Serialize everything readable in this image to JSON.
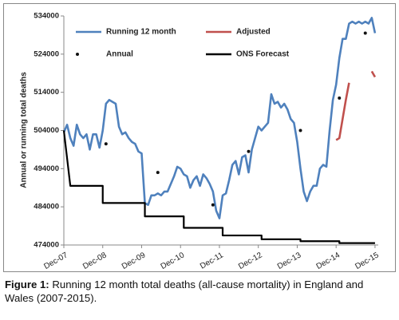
{
  "chart_data": {
    "type": "line",
    "y_label": "Annual or running total deaths",
    "xlim": [
      0,
      97
    ],
    "ylim": [
      474000,
      534000
    ],
    "yticks": [
      474000,
      484000,
      494000,
      504000,
      514000,
      524000,
      534000
    ],
    "xticks": [
      {
        "value": 0,
        "label": "Dec-07"
      },
      {
        "value": 12,
        "label": "Dec-08"
      },
      {
        "value": 24,
        "label": "Dec-09"
      },
      {
        "value": 36,
        "label": "Dec-10"
      },
      {
        "value": 48,
        "label": "Dec-11"
      },
      {
        "value": 60,
        "label": "Dec-12"
      },
      {
        "value": 72,
        "label": "Dec-13"
      },
      {
        "value": 84,
        "label": "Dec-14"
      },
      {
        "value": 96,
        "label": "Dec-15"
      }
    ],
    "series": [
      {
        "name": "Running 12 month",
        "color": "#4f81bd",
        "style": "line",
        "x": [
          0,
          1,
          2,
          3,
          4,
          5,
          6,
          7,
          8,
          9,
          10,
          11,
          12,
          13,
          14,
          15,
          16,
          17,
          18,
          19,
          20,
          21,
          22,
          23,
          24,
          25,
          26,
          27,
          28,
          29,
          30,
          31,
          32,
          33,
          34,
          35,
          36,
          37,
          38,
          39,
          40,
          41,
          42,
          43,
          44,
          45,
          46,
          47,
          48,
          49,
          50,
          51,
          52,
          53,
          54,
          55,
          56,
          57,
          58,
          59,
          60,
          61,
          62,
          63,
          64,
          65,
          66,
          67,
          68,
          69,
          70,
          71,
          72,
          73,
          74,
          75,
          76,
          77,
          78,
          79,
          80,
          81,
          82,
          83,
          84,
          85,
          86,
          87,
          88,
          89,
          90,
          91,
          92,
          93,
          94,
          95,
          96
        ],
        "values": [
          503500,
          505500,
          502000,
          500000,
          505500,
          503000,
          502000,
          503000,
          499000,
          503000,
          503000,
          499500,
          504000,
          511000,
          512000,
          511500,
          511000,
          505000,
          503000,
          503500,
          502000,
          501000,
          500500,
          498500,
          498000,
          485000,
          484500,
          487000,
          487000,
          487500,
          487000,
          488000,
          488000,
          490000,
          492000,
          494500,
          494000,
          492500,
          492000,
          489000,
          491000,
          492000,
          489500,
          492500,
          491500,
          490000,
          488000,
          483000,
          481000,
          487000,
          487500,
          491000,
          495000,
          496000,
          492500,
          497000,
          497500,
          493000,
          499000,
          502000,
          505000,
          504000,
          505000,
          506000,
          513500,
          511000,
          511500,
          510000,
          511000,
          509500,
          507000,
          506000,
          501000,
          494000,
          488000,
          485500,
          488000,
          489500,
          489500,
          494000,
          495000,
          494500,
          504000,
          512000,
          516000,
          523000,
          528000,
          528000,
          532000,
          532500,
          532000,
          532500,
          532000,
          532500,
          532000,
          533500,
          529500
        ]
      },
      {
        "name": "Adjusted",
        "color": "#c0504d",
        "style": "line",
        "x": [
          84,
          85,
          86,
          87,
          88,
          89,
          90,
          91,
          92,
          93,
          94,
          95,
          96
        ],
        "values": [
          501500,
          502000,
          507000,
          512000,
          516500,
          null,
          null,
          null,
          null,
          null,
          null,
          519500,
          518000
        ]
      },
      {
        "name": "Annual",
        "color": "#111111",
        "style": "dot",
        "x": [
          13,
          29,
          46,
          57,
          73,
          85,
          93
        ],
        "values": [
          500500,
          493000,
          484500,
          498500,
          504000,
          512500,
          529500
        ]
      },
      {
        "name": "ONS Forecast",
        "color": "#000000",
        "style": "line",
        "x": [
          0,
          2,
          12,
          12,
          25,
          25,
          37,
          37,
          49,
          49,
          61,
          61,
          73,
          73,
          85,
          85,
          96
        ],
        "values": [
          504000,
          489500,
          489500,
          485000,
          485000,
          481500,
          481500,
          478500,
          478500,
          476500,
          476500,
          475500,
          475500,
          475000,
          475000,
          474500,
          474500
        ]
      }
    ],
    "caption": {
      "label": "Figure 1:",
      "text": "Running 12 month total deaths (all-cause mortality) in England and Wales (2007-2015)."
    }
  }
}
